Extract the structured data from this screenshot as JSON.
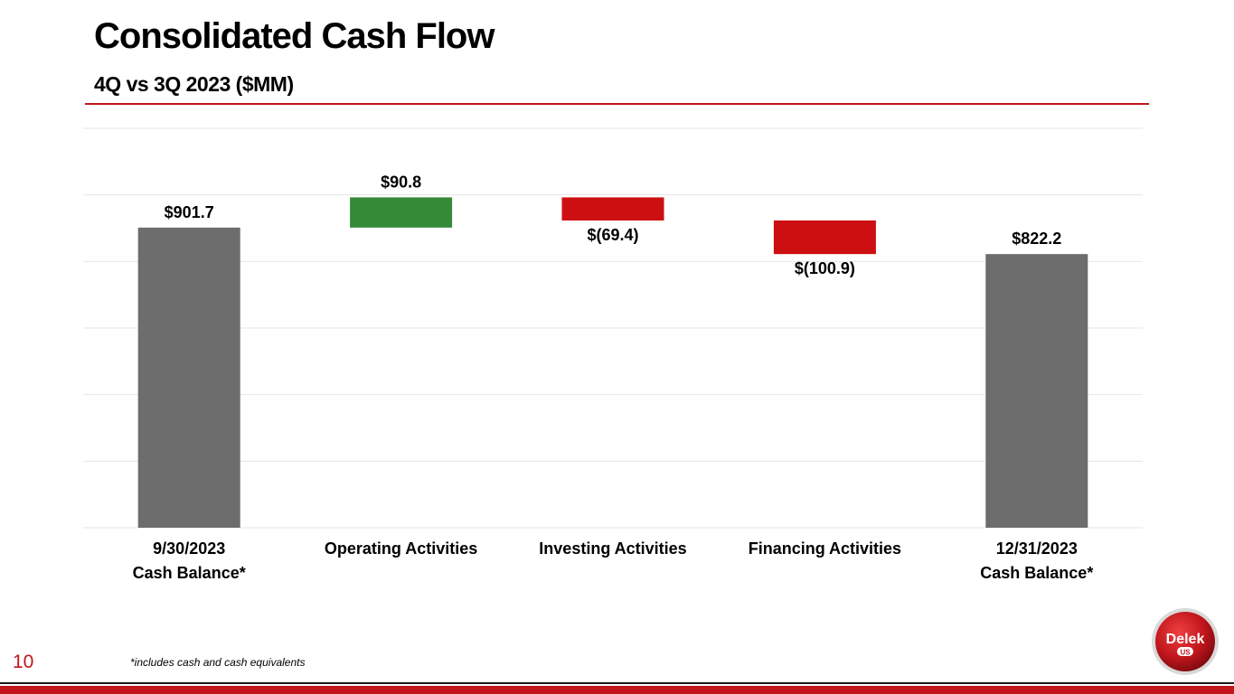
{
  "header": {
    "title": "Consolidated Cash Flow",
    "subtitle": "4Q vs 3Q 2023 ($MM)"
  },
  "footer": {
    "footnote": "*includes cash and cash equivalents",
    "page_number": "10",
    "logo_text": "Delek",
    "logo_subtext": "US"
  },
  "colors": {
    "accent": "#c0161c",
    "total": "#6d6d6d",
    "increase": "#358a38",
    "decrease": "#cc0f10",
    "grid": "#e6e6e6"
  },
  "chart_data": {
    "type": "waterfall",
    "title": "",
    "xlabel": "",
    "ylabel": "",
    "ylim": [
      0,
      1200
    ],
    "gridlines": [
      0,
      200,
      400,
      600,
      800,
      1000,
      1200
    ],
    "categories": [
      [
        "9/30/2023",
        "Cash Balance*"
      ],
      [
        "Operating Activities"
      ],
      [
        "Investing Activities"
      ],
      [
        "Financing Activities"
      ],
      [
        "12/31/2023",
        "Cash Balance*"
      ]
    ],
    "steps": [
      {
        "kind": "total",
        "value": 901.7,
        "label": "$901.7"
      },
      {
        "kind": "increase",
        "value": 90.8,
        "label": "$90.8"
      },
      {
        "kind": "decrease",
        "value": -69.4,
        "label": "$(69.4)"
      },
      {
        "kind": "decrease",
        "value": -100.9,
        "label": "$(100.9)"
      },
      {
        "kind": "total",
        "value": 822.2,
        "label": "$822.2"
      }
    ]
  }
}
